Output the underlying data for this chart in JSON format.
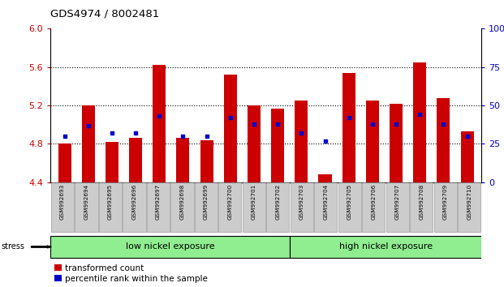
{
  "title": "GDS4974 / 8002481",
  "samples": [
    "GSM992693",
    "GSM992694",
    "GSM992695",
    "GSM992696",
    "GSM992697",
    "GSM992698",
    "GSM992699",
    "GSM992700",
    "GSM992701",
    "GSM992702",
    "GSM992703",
    "GSM992704",
    "GSM992705",
    "GSM992706",
    "GSM992707",
    "GSM992708",
    "GSM992709",
    "GSM992710"
  ],
  "red_values": [
    4.8,
    5.2,
    4.82,
    4.86,
    5.62,
    4.86,
    4.84,
    5.52,
    5.2,
    5.17,
    5.25,
    4.48,
    5.54,
    5.25,
    5.22,
    5.65,
    5.28,
    4.93
  ],
  "blue_values": [
    30,
    37,
    32,
    32,
    43,
    30,
    30,
    42,
    38,
    38,
    32,
    27,
    42,
    38,
    38,
    44,
    38,
    30
  ],
  "ylim_left": [
    4.4,
    6.0
  ],
  "ylim_right": [
    0,
    100
  ],
  "yticks_left": [
    4.4,
    4.8,
    5.2,
    5.6,
    6.0
  ],
  "yticks_right": [
    0,
    25,
    50,
    75,
    100
  ],
  "bar_color": "#cc0000",
  "dot_color": "#0000cc",
  "bar_bottom": 4.4,
  "bar_width": 0.55,
  "group1_count": 10,
  "group1_label": "low nickel exposure",
  "group2_label": "high nickel exposure",
  "group_bg_color": "#90ee90",
  "stress_label": "stress",
  "legend1": "transformed count",
  "legend2": "percentile rank within the sample",
  "xlabel_color": "#cc0000",
  "right_axis_color": "#0000cc",
  "tick_label_bg": "#cccccc"
}
